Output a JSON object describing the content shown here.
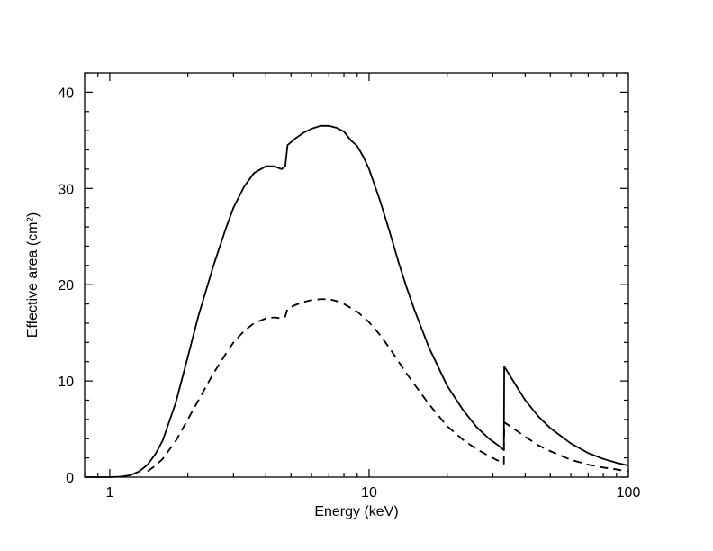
{
  "chart_data": {
    "type": "line",
    "xlabel": "Energy (keV)",
    "ylabel": "Effective area (cm²)",
    "xscale": "log",
    "xlim": [
      0.8,
      100
    ],
    "ylim": [
      0,
      42
    ],
    "x_ticks": [
      {
        "value": 1,
        "label": "1"
      },
      {
        "value": 10,
        "label": "10"
      },
      {
        "value": 100,
        "label": "100"
      }
    ],
    "y_ticks": [
      {
        "value": 0,
        "label": "0"
      },
      {
        "value": 10,
        "label": "10"
      },
      {
        "value": 20,
        "label": "20"
      },
      {
        "value": 30,
        "label": "30"
      },
      {
        "value": 40,
        "label": "40"
      }
    ],
    "grid": false,
    "series": [
      {
        "style": "solid",
        "color": "#000000",
        "points": [
          [
            0.8,
            0
          ],
          [
            1.0,
            0
          ],
          [
            1.1,
            0.05
          ],
          [
            1.2,
            0.2
          ],
          [
            1.3,
            0.6
          ],
          [
            1.4,
            1.3
          ],
          [
            1.5,
            2.4
          ],
          [
            1.6,
            3.8
          ],
          [
            1.8,
            7.8
          ],
          [
            2.0,
            12.5
          ],
          [
            2.2,
            16.8
          ],
          [
            2.5,
            21.8
          ],
          [
            2.8,
            25.8
          ],
          [
            3.0,
            28.0
          ],
          [
            3.3,
            30.2
          ],
          [
            3.6,
            31.6
          ],
          [
            4.0,
            32.3
          ],
          [
            4.3,
            32.3
          ],
          [
            4.6,
            32.0
          ],
          [
            4.75,
            32.3
          ],
          [
            4.85,
            34.5
          ],
          [
            5.2,
            35.2
          ],
          [
            5.6,
            35.8
          ],
          [
            6.0,
            36.2
          ],
          [
            6.5,
            36.5
          ],
          [
            7.0,
            36.5
          ],
          [
            7.5,
            36.3
          ],
          [
            8.0,
            35.9
          ],
          [
            8.5,
            35.0
          ],
          [
            9.0,
            34.4
          ],
          [
            9.5,
            33.3
          ],
          [
            10.0,
            32.0
          ],
          [
            11.0,
            28.8
          ],
          [
            12.0,
            25.5
          ],
          [
            13.0,
            22.3
          ],
          [
            14.0,
            19.6
          ],
          [
            15.0,
            17.3
          ],
          [
            17.0,
            13.5
          ],
          [
            20.0,
            9.5
          ],
          [
            23.0,
            7.0
          ],
          [
            26.0,
            5.2
          ],
          [
            29.0,
            4.0
          ],
          [
            31.5,
            3.3
          ],
          [
            33.1,
            2.8
          ],
          [
            33.2,
            11.5
          ],
          [
            35.0,
            10.5
          ],
          [
            40.0,
            8.0
          ],
          [
            45.0,
            6.3
          ],
          [
            50.0,
            5.1
          ],
          [
            60.0,
            3.5
          ],
          [
            70.0,
            2.5
          ],
          [
            80.0,
            1.9
          ],
          [
            90.0,
            1.5
          ],
          [
            100.0,
            1.2
          ]
        ]
      },
      {
        "style": "dashed",
        "color": "#000000",
        "points": [
          [
            1.4,
            0.6
          ],
          [
            1.5,
            1.2
          ],
          [
            1.6,
            1.9
          ],
          [
            1.8,
            3.8
          ],
          [
            2.0,
            6.0
          ],
          [
            2.2,
            8.0
          ],
          [
            2.5,
            10.7
          ],
          [
            2.8,
            12.8
          ],
          [
            3.0,
            14.0
          ],
          [
            3.3,
            15.2
          ],
          [
            3.6,
            16.0
          ],
          [
            4.0,
            16.5
          ],
          [
            4.3,
            16.6
          ],
          [
            4.6,
            16.5
          ],
          [
            4.75,
            16.7
          ],
          [
            4.85,
            17.5
          ],
          [
            5.2,
            17.9
          ],
          [
            5.6,
            18.2
          ],
          [
            6.0,
            18.4
          ],
          [
            6.5,
            18.5
          ],
          [
            7.0,
            18.5
          ],
          [
            7.5,
            18.3
          ],
          [
            8.0,
            18.0
          ],
          [
            9.0,
            17.2
          ],
          [
            10.0,
            16.1
          ],
          [
            11.0,
            14.8
          ],
          [
            12.0,
            13.4
          ],
          [
            13.0,
            12.0
          ],
          [
            14.0,
            10.7
          ],
          [
            15.0,
            9.6
          ],
          [
            17.0,
            7.6
          ],
          [
            20.0,
            5.3
          ],
          [
            23.0,
            3.9
          ],
          [
            26.0,
            2.9
          ],
          [
            29.0,
            2.2
          ],
          [
            33.1,
            1.4
          ],
          [
            33.2,
            5.7
          ],
          [
            35.0,
            5.3
          ],
          [
            40.0,
            4.2
          ],
          [
            45.0,
            3.3
          ],
          [
            50.0,
            2.7
          ],
          [
            60.0,
            1.8
          ],
          [
            70.0,
            1.3
          ],
          [
            80.0,
            1.0
          ],
          [
            90.0,
            0.8
          ],
          [
            100.0,
            0.6
          ]
        ]
      }
    ]
  }
}
